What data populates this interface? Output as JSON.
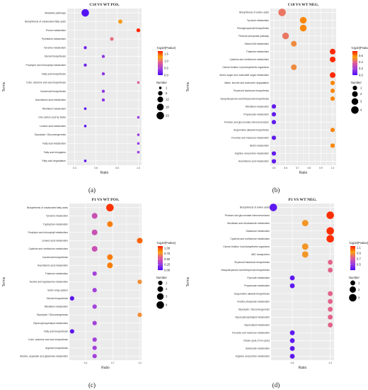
{
  "chart_data": [
    {
      "type": "scatter",
      "panel_label": "(a)",
      "title": "C18 VS WT POS.",
      "xlabel": "Ratio",
      "ylabel": "Terms",
      "xlim": [
        0.33,
        1.03
      ],
      "xticks": [
        0.4,
        0.6,
        0.8,
        1.0
      ],
      "xtick_labels": [
        "0.4",
        "0.6",
        "0.8",
        "1.0"
      ],
      "grid": true,
      "legend_position": "right",
      "color_legend": {
        "title": "-log10(Pvalue)",
        "range": [
          0,
          1.7
        ],
        "ticks": [
          0.0,
          0.5,
          1.0,
          1.5
        ],
        "tick_labels": [
          "0.0",
          "0.5",
          "1.0",
          "1.5"
        ]
      },
      "size_legend": {
        "title": "Number",
        "values": [
          1,
          6,
          12,
          18,
          23
        ],
        "labels": [
          "1",
          "6",
          "12",
          "18",
          "23"
        ]
      },
      "terms": [
        "Metabolic pathways",
        "Biosynthesis of unsaturated fatty acids",
        "Purine metabolism",
        "Pyrimidine metabolism",
        "Tyrosine metabolism",
        "Steroid biosynthesis",
        "Porphyrin and chlorophyll metabolism",
        "Fatty acid biosynthesis",
        "Cutin, suberine and wax biosynthesis",
        "Carotenoid biosynthesis",
        "Arachidonic acid metabolism",
        "Riboflavin metabolism",
        "One carbon pool by folate",
        "Linoleic acid metabolism",
        "Glycolysis / Gluconeogenesis",
        "Fatty acid metabolism",
        "Fatty acid elongation",
        "Fatty acid degradation"
      ],
      "ratio": [
        0.5,
        0.83,
        1.0,
        0.75,
        0.5,
        0.67,
        0.5,
        0.67,
        1.0,
        0.67,
        0.67,
        0.5,
        1.0,
        0.5,
        1.0,
        1.0,
        1.0,
        0.5
      ],
      "number": [
        23,
        5,
        4,
        3,
        2,
        2,
        2,
        2,
        1,
        2,
        2,
        1,
        1,
        1,
        1,
        1,
        1,
        1
      ],
      "neg_log10_p": [
        0.05,
        1.3,
        1.65,
        0.95,
        0.2,
        0.35,
        0.2,
        0.35,
        0.85,
        0.35,
        0.35,
        0.1,
        0.4,
        0.1,
        0.4,
        0.4,
        0.4,
        0.1
      ]
    },
    {
      "type": "scatter",
      "panel_label": "(b)",
      "title": "C18 VS WT NEG.",
      "xlabel": "Ratio",
      "ylabel": "Terms",
      "xlim": [
        0.47,
        1.03
      ],
      "xticks": [
        0.5,
        0.6,
        0.7,
        0.8,
        0.9,
        1.0
      ],
      "xtick_labels": [
        "0.5",
        "0.6",
        "0.7",
        "0.8",
        "0.9",
        "1.0"
      ],
      "grid": true,
      "legend_position": "right",
      "color_legend": {
        "title": "-log10(Pvalue)",
        "range": [
          0,
          0.75
        ],
        "ticks": [
          0.0,
          0.2,
          0.4,
          0.6
        ],
        "tick_labels": [
          "0.0",
          "0.2",
          "0.4",
          "0.6"
        ]
      },
      "size_legend": {
        "title": "Number",
        "values": [
          1,
          2,
          3,
          4
        ],
        "labels": [
          "1",
          "2",
          "3",
          "4"
        ]
      },
      "terms": [
        "Biosynthesis of amino acids",
        "Tyrosine metabolism",
        "Phenylpropanoid biosynthesis",
        "Pentose phosphate pathway",
        "Vitamin B6 metabolism",
        "Thiamine metabolism",
        "Cysteine and methionine metabolism",
        "Carbon fixation in photosynthetic organisms",
        "Amino sugar and nucleotide sugar metabolism",
        "Valine, leucine and isoleucine degradation",
        "Terpenoid backbone biosynthesis",
        "Sesquiterpenoid and triterpenoid biosynthesis",
        "Riboflavin metabolism",
        "Propanoate metabolism",
        "Pentose and glucuronate interconversions",
        "Isoquinoline alkaloid biosynthesis",
        "Fructose and mannose metabolism",
        "Biotin metabolism",
        "Arginine and proline metabolism",
        "Arachidonic acid metabolism"
      ],
      "ratio": [
        0.57,
        0.75,
        0.75,
        0.6,
        0.67,
        1.0,
        1.0,
        0.67,
        1.0,
        1.0,
        1.0,
        1.0,
        0.5,
        0.5,
        0.5,
        1.0,
        0.5,
        1.0,
        0.5,
        0.5
      ],
      "number": [
        4,
        3,
        3,
        3,
        2,
        2,
        2,
        2,
        2,
        1,
        1,
        1,
        1,
        1,
        1,
        1,
        1,
        1,
        1,
        1
      ],
      "neg_log10_p": [
        0.45,
        0.6,
        0.6,
        0.45,
        0.5,
        0.73,
        0.73,
        0.5,
        0.73,
        0.6,
        0.6,
        0.6,
        0.05,
        0.05,
        0.05,
        0.6,
        0.05,
        0.6,
        0.05,
        0.05
      ]
    },
    {
      "type": "scatter",
      "panel_label": "(c)",
      "title": "P1 VS WT POS.",
      "xlabel": "Ratio",
      "ylabel": "Terms",
      "xlim": [
        0.22,
        1.02
      ],
      "xticks": [
        0.4,
        0.7,
        1.0
      ],
      "xtick_labels": [
        "0.4",
        "0.7",
        "1.0"
      ],
      "grid": true,
      "legend_position": "right",
      "color_legend": {
        "title": "-log10(Pvalue)",
        "range": [
          0,
          1.1
        ],
        "ticks": [
          0.0,
          0.25,
          0.5,
          0.75,
          1.0
        ],
        "tick_labels": [
          "0.00",
          "0.25",
          "0.50",
          "0.75",
          "1.00"
        ]
      },
      "size_legend": {
        "title": "Number",
        "values": [
          1,
          2,
          3,
          4
        ],
        "labels": [
          "1",
          "2",
          "3",
          "4"
        ]
      },
      "terms": [
        "Biosynthesis of unsaturated fatty acids",
        "Tyrosine metabolism",
        "Tryptophan metabolism",
        "Porphyrin and chlorophyll metabolism",
        "Linoleic acid metabolism",
        "Cysteine and methionine metabolism",
        "Carotenoid biosynthesis",
        "Arachidonic acid metabolism",
        "Thiamine metabolism",
        "Taurine and hypotaurine metabolism",
        "Sulfur relay system",
        "Steroid biosynthesis",
        "Riboflavin metabolism",
        "Glycolysis / Gluconeogenesis",
        "Glycerophospholipid metabolism",
        "Fatty acid biosynthesis",
        "Cutin, suberine and wax biosynthesis",
        "Arginine biosynthesis",
        "Alanine, aspartate and glutamate metabolism"
      ],
      "ratio": [
        0.67,
        0.5,
        0.67,
        0.5,
        1.0,
        0.5,
        0.67,
        0.67,
        0.5,
        1.0,
        0.5,
        0.25,
        0.5,
        1.0,
        0.5,
        0.25,
        0.5,
        0.5,
        0.5
      ],
      "number": [
        4,
        2,
        2,
        2,
        2,
        2,
        2,
        2,
        1,
        1,
        1,
        1,
        1,
        1,
        1,
        1,
        1,
        1,
        1
      ],
      "neg_log10_p": [
        1.05,
        0.45,
        0.9,
        0.45,
        0.95,
        0.45,
        0.9,
        0.9,
        0.3,
        0.75,
        0.3,
        0.05,
        0.3,
        0.75,
        0.3,
        0.05,
        0.3,
        0.3,
        0.3
      ]
    },
    {
      "type": "scatter",
      "panel_label": "(d)",
      "title": "P1 VS WT NEG.",
      "xlabel": "Ratio",
      "ylabel": "Terms",
      "xlim": [
        0.22,
        1.05
      ],
      "xticks": [
        0.5,
        1.0
      ],
      "xtick_labels": [
        "0.5",
        "1.0"
      ],
      "grid": true,
      "legend_position": "right",
      "color_legend": {
        "title": "-log10(Pvalue)",
        "range": [
          0.3,
          1.15
        ],
        "ticks": [
          0.5,
          0.7,
          0.9,
          1.1
        ],
        "tick_labels": [
          "0.5",
          "0.7",
          "0.9",
          "1.1"
        ]
      },
      "size_legend": {
        "title": "Number",
        "values": [
          1,
          2,
          3
        ],
        "labels": [
          "1",
          "2",
          "3"
        ]
      },
      "terms": [
        "Biosynthesis of amino acids",
        "Pentose and glucuronate interconversions",
        "Nicotinate and nicotinamide metabolism",
        "Galactose metabolism",
        "Cysteine and methionine metabolism",
        "Carbon fixation in photosynthetic organisms",
        "ABC transporters",
        "Terpenoid backbone biosynthesis",
        "Sesquiterpenoid and triterpenoid biosynthesis",
        "Pyruvate metabolism",
        "Propanoate metabolism",
        "Isoquinoline alkaloid biosynthesis",
        "Inositol phosphate metabolism",
        "Glycolysis / Gluconeogenesis",
        "Glycerophospholipid metabolism",
        "Glycerolipid metabolism",
        "Fructose and mannose metabolism",
        "Citrate cycle (TCA cycle)",
        "Butanoate metabolism",
        "Arginine and proline metabolism"
      ],
      "ratio": [
        0.25,
        1.0,
        0.67,
        1.0,
        1.0,
        0.67,
        0.67,
        1.0,
        1.0,
        0.5,
        0.5,
        1.0,
        1.0,
        1.0,
        1.0,
        1.0,
        0.5,
        0.5,
        0.5,
        0.5
      ],
      "number": [
        3,
        3,
        2,
        3,
        3,
        2,
        2,
        1,
        1,
        1,
        1,
        1,
        1,
        1,
        1,
        1,
        1,
        1,
        1,
        1
      ],
      "neg_log10_p": [
        0.35,
        1.12,
        0.9,
        1.12,
        1.12,
        0.9,
        0.9,
        0.75,
        0.75,
        0.35,
        0.35,
        0.75,
        0.75,
        0.75,
        0.75,
        0.75,
        0.35,
        0.35,
        0.35,
        0.35
      ]
    }
  ]
}
